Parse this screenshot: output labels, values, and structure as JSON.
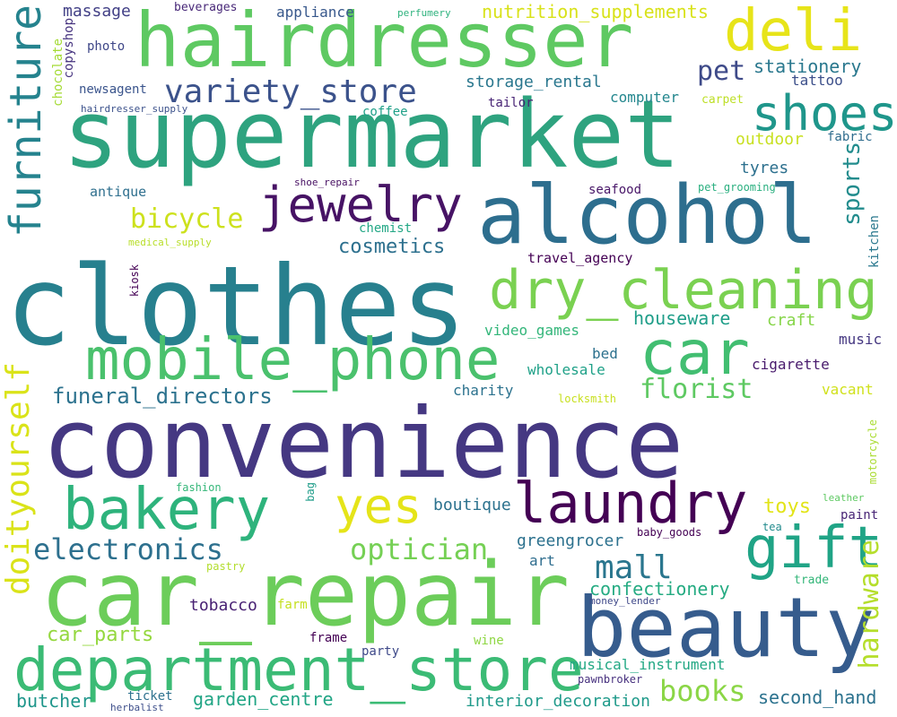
{
  "words": [
    {
      "text": "convenience",
      "color": "#453882"
    },
    {
      "text": "clothes",
      "color": "#27808e"
    },
    {
      "text": "supermarket",
      "color": "#2ea37f"
    },
    {
      "text": "car_repair",
      "color": "#6ccd5a"
    },
    {
      "text": "hairdresser",
      "color": "#5ec962"
    },
    {
      "text": "alcohol",
      "color": "#2d6e8e"
    },
    {
      "text": "beauty",
      "color": "#365c8d"
    },
    {
      "text": "department_store",
      "color": "#3bbb75"
    },
    {
      "text": "mobile_phone",
      "color": "#4ac16d"
    },
    {
      "text": "dry_cleaning",
      "color": "#7ad151"
    },
    {
      "text": "furniture",
      "color": "#25838e"
    },
    {
      "text": "bakery",
      "color": "#2eb37c"
    },
    {
      "text": "laundry",
      "color": "#440154"
    },
    {
      "text": "car",
      "color": "#42be71"
    },
    {
      "text": "deli",
      "color": "#e7e419"
    },
    {
      "text": "shoes",
      "color": "#1f968b"
    },
    {
      "text": "jewelry",
      "color": "#471365"
    },
    {
      "text": "gift",
      "color": "#20a486"
    },
    {
      "text": "variety_store",
      "color": "#3b528b"
    },
    {
      "text": "yes",
      "color": "#e5e419"
    },
    {
      "text": "doityourself",
      "color": "#dae319"
    },
    {
      "text": "electronics",
      "color": "#2d708e"
    },
    {
      "text": "optician",
      "color": "#75d054"
    },
    {
      "text": "mall",
      "color": "#2a768e"
    },
    {
      "text": "books",
      "color": "#8bd646"
    },
    {
      "text": "hardware",
      "color": "#b5de2b"
    },
    {
      "text": "florist",
      "color": "#5ec962"
    },
    {
      "text": "pet",
      "color": "#3e4a89"
    },
    {
      "text": "bicycle",
      "color": "#cde11d"
    },
    {
      "text": "funeral_directors",
      "color": "#2c728e"
    },
    {
      "text": "sports",
      "color": "#228c8d"
    },
    {
      "text": "cosmetics",
      "color": "#2d708e"
    },
    {
      "text": "stationery",
      "color": "#2a788e"
    },
    {
      "text": "nutrition_supplements",
      "color": "#d8e219"
    },
    {
      "text": "confectionery",
      "color": "#25ab82"
    },
    {
      "text": "car_parts",
      "color": "#95d840"
    },
    {
      "text": "houseware",
      "color": "#1f9e89"
    },
    {
      "text": "garden_centre",
      "color": "#21a585"
    },
    {
      "text": "second_hand",
      "color": "#2c728e"
    },
    {
      "text": "butcher",
      "color": "#1f968b"
    },
    {
      "text": "interior_decoration",
      "color": "#1f9a8a"
    },
    {
      "text": "musical_instrument",
      "color": "#22a884"
    },
    {
      "text": "toys",
      "color": "#e2e418"
    },
    {
      "text": "outdoor",
      "color": "#c8e020"
    },
    {
      "text": "tyres",
      "color": "#2d708e"
    },
    {
      "text": "boutique",
      "color": "#2c728e"
    },
    {
      "text": "greengrocer",
      "color": "#2c718e"
    },
    {
      "text": "tobacco",
      "color": "#482173"
    },
    {
      "text": "storage_rental",
      "color": "#2a778e"
    },
    {
      "text": "massage",
      "color": "#424086"
    },
    {
      "text": "appliance",
      "color": "#38588c"
    },
    {
      "text": "computer",
      "color": "#24878e"
    },
    {
      "text": "tattoo",
      "color": "#3c4f8a"
    },
    {
      "text": "craft",
      "color": "#86d549"
    },
    {
      "text": "video_games",
      "color": "#33b67a"
    },
    {
      "text": "wholesale",
      "color": "#1fa188"
    },
    {
      "text": "charity",
      "color": "#2c728e"
    },
    {
      "text": "bed",
      "color": "#2d718e"
    },
    {
      "text": "music",
      "color": "#453781"
    },
    {
      "text": "cigarette",
      "color": "#481a6c"
    },
    {
      "text": "vacant",
      "color": "#d0e11c"
    },
    {
      "text": "art",
      "color": "#2e6d8e"
    },
    {
      "text": "paint",
      "color": "#482576"
    },
    {
      "text": "frame",
      "color": "#440154"
    },
    {
      "text": "wine",
      "color": "#8fd744"
    },
    {
      "text": "party",
      "color": "#3e4989"
    },
    {
      "text": "ticket",
      "color": "#2d718e"
    },
    {
      "text": "farm",
      "color": "#c5e021"
    },
    {
      "text": "antique",
      "color": "#2e6f8e"
    },
    {
      "text": "chemist",
      "color": "#22a785"
    },
    {
      "text": "travel_agency",
      "color": "#440154"
    },
    {
      "text": "seafood",
      "color": "#481668"
    },
    {
      "text": "tailor",
      "color": "#482475"
    },
    {
      "text": "coffee",
      "color": "#1fa088"
    },
    {
      "text": "fabric",
      "color": "#2f6c8e"
    },
    {
      "text": "beverages",
      "color": "#482878"
    },
    {
      "text": "photo",
      "color": "#3f4788"
    },
    {
      "text": "newsagent",
      "color": "#3a548c"
    },
    {
      "text": "copyshop",
      "color": "#46337f"
    },
    {
      "text": "chocolate",
      "color": "#a5db36"
    },
    {
      "text": "hairdresser_supply",
      "color": "#3b518b"
    },
    {
      "text": "perfumery",
      "color": "#2db27d"
    },
    {
      "text": "carpet",
      "color": "#bddf26"
    },
    {
      "text": "pet_grooming",
      "color": "#29af7f"
    },
    {
      "text": "shoe_repair",
      "color": "#471063"
    },
    {
      "text": "medical_supply",
      "color": "#b8de29"
    },
    {
      "text": "kiosk",
      "color": "#440154"
    },
    {
      "text": "kitchen",
      "color": "#2a788e"
    },
    {
      "text": "locksmith",
      "color": "#c8e020"
    },
    {
      "text": "motorcycle",
      "color": "#aadc32"
    },
    {
      "text": "fashion",
      "color": "#35b779"
    },
    {
      "text": "bag",
      "color": "#1e9c89"
    },
    {
      "text": "leather",
      "color": "#5ec962"
    },
    {
      "text": "tea",
      "color": "#228b8d"
    },
    {
      "text": "baby_goods",
      "color": "#440154"
    },
    {
      "text": "pastry",
      "color": "#b2dd2d"
    },
    {
      "text": "trade",
      "color": "#34b679"
    },
    {
      "text": "money_lender",
      "color": "#3f4889"
    },
    {
      "text": "pawnbroker",
      "color": "#46307e"
    },
    {
      "text": "herbalist",
      "color": "#3d4e8a"
    },
    {
      "text": "",
      "color": "#37b878"
    },
    {
      "text": "",
      "color": "#440154"
    },
    {
      "text": "",
      "color": "#1fa187"
    }
  ]
}
